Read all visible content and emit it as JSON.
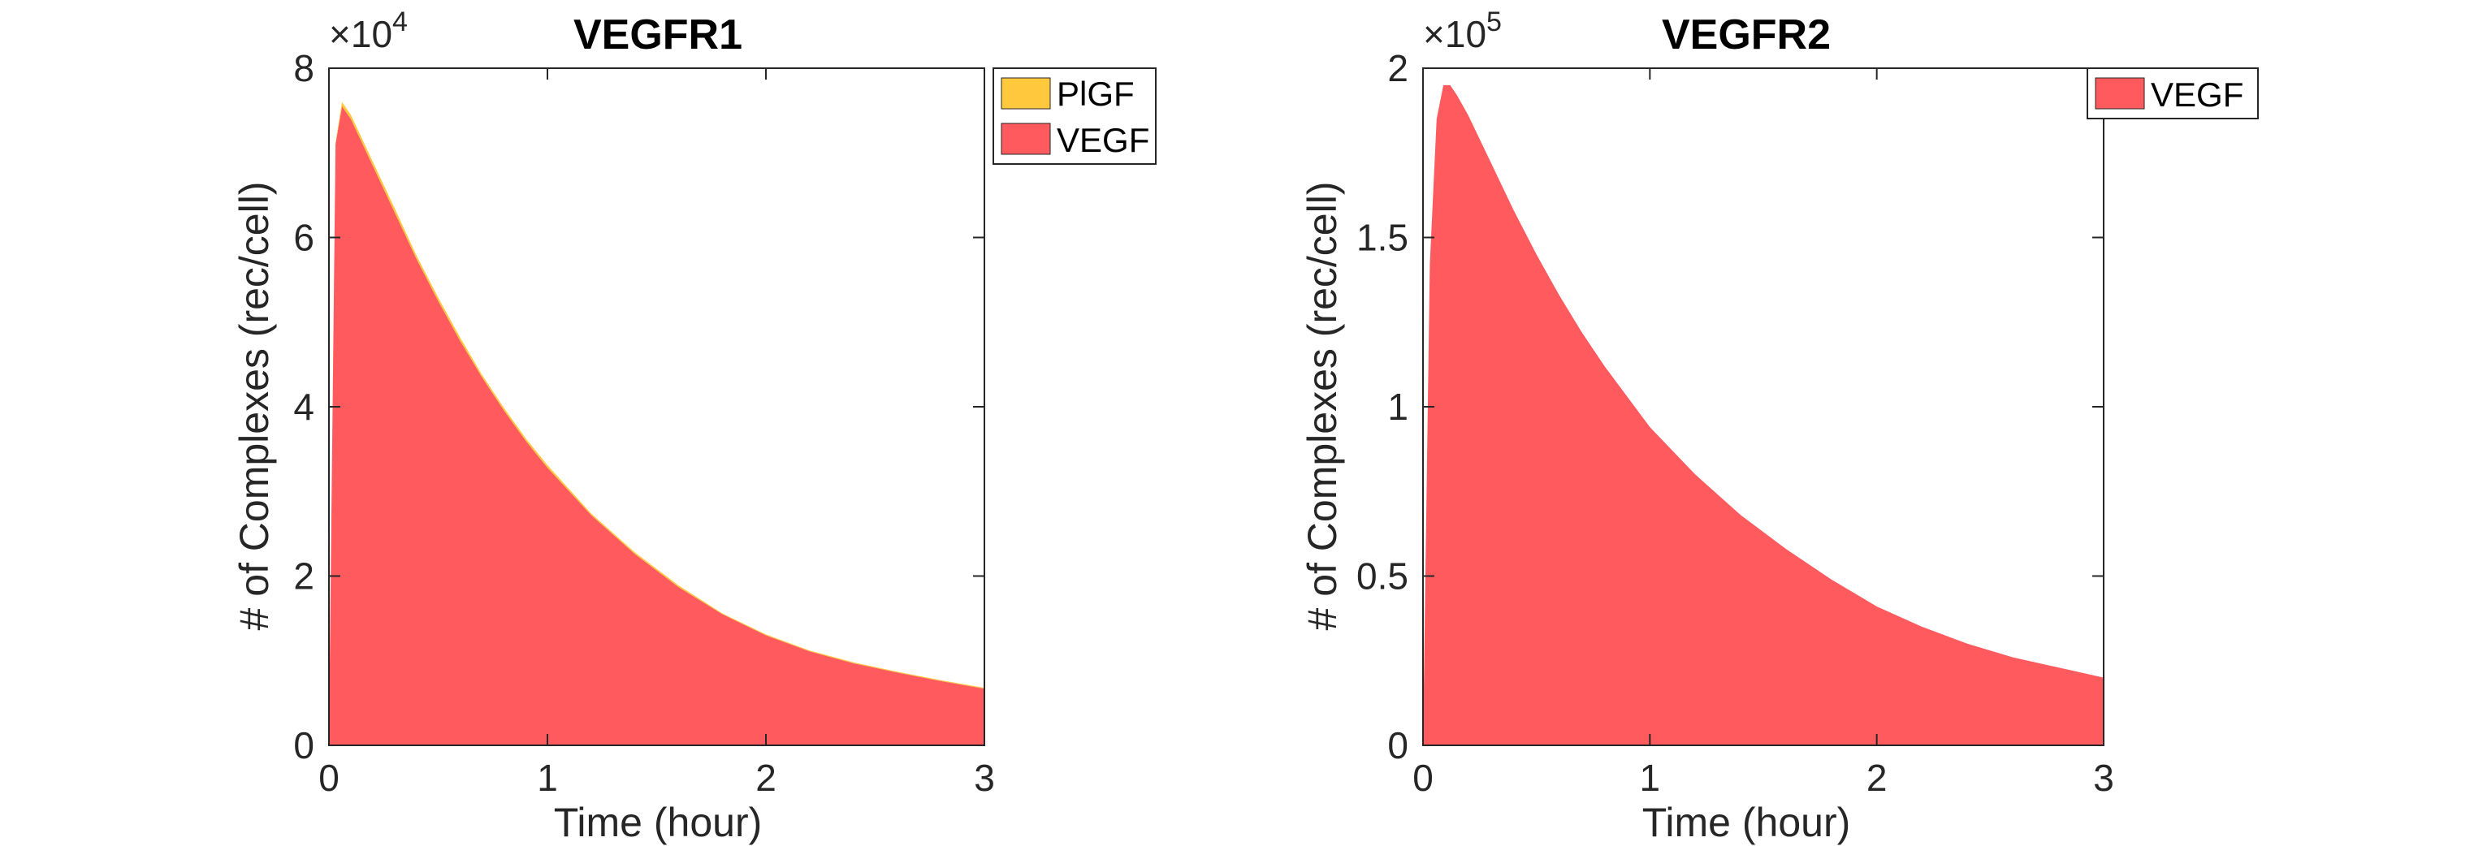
{
  "chart_data": [
    {
      "type": "area",
      "stacked": true,
      "title": "VEGFR1",
      "xlabel": "Time (hour)",
      "ylabel": "# of Complexes (rec/cell)",
      "xlim": [
        0,
        3
      ],
      "ylim": [
        0,
        8
      ],
      "xticks": [
        0,
        1,
        2,
        3
      ],
      "yticks": [
        0,
        2,
        4,
        6,
        8
      ],
      "y_exponent": "4",
      "y_multiplier_prefix": "×10",
      "legend_position": "outside-top-right",
      "legend": [
        "PlGF",
        "VEGF"
      ],
      "series": [
        {
          "name": "VEGF",
          "color": "#FF5A5E",
          "x": [
            0,
            0.03,
            0.06,
            0.1,
            0.2,
            0.3,
            0.4,
            0.5,
            0.6,
            0.7,
            0.8,
            0.9,
            1.0,
            1.2,
            1.4,
            1.6,
            1.8,
            2.0,
            2.2,
            2.4,
            2.6,
            2.8,
            3.0
          ],
          "values": [
            0.1,
            7.1,
            7.55,
            7.4,
            6.85,
            6.3,
            5.75,
            5.25,
            4.78,
            4.35,
            3.96,
            3.6,
            3.28,
            2.72,
            2.26,
            1.87,
            1.55,
            1.3,
            1.11,
            0.97,
            0.86,
            0.76,
            0.67
          ]
        },
        {
          "name": "PlGF",
          "color": "#FFC83D",
          "x": [
            0,
            0.03,
            0.06,
            0.1,
            0.2,
            0.3,
            0.4,
            0.5,
            0.6,
            0.7,
            0.8,
            0.9,
            1.0,
            1.2,
            1.4,
            1.6,
            1.8,
            2.0,
            2.2,
            2.4,
            2.6,
            2.8,
            3.0
          ],
          "values": [
            0,
            0.02,
            0.05,
            0.05,
            0.05,
            0.05,
            0.04,
            0.04,
            0.04,
            0.03,
            0.03,
            0.03,
            0.03,
            0.02,
            0.02,
            0.02,
            0.01,
            0.01,
            0.01,
            0.01,
            0.01,
            0.01,
            0.01
          ]
        }
      ]
    },
    {
      "type": "area",
      "stacked": true,
      "title": "VEGFR2",
      "xlabel": "Time (hour)",
      "ylabel": "# of Complexes (rec/cell)",
      "xlim": [
        0,
        3
      ],
      "ylim": [
        0,
        2
      ],
      "xticks": [
        0,
        1,
        2,
        3
      ],
      "yticks": [
        0,
        0.5,
        1,
        1.5,
        2
      ],
      "ytick_labels": [
        "0",
        "0.5",
        "1",
        "1.5",
        "2"
      ],
      "y_exponent": "5",
      "y_multiplier_prefix": "×10",
      "legend_position": "outside-top-right",
      "legend": [
        "VEGF"
      ],
      "series": [
        {
          "name": "VEGF",
          "color": "#FF5A5E",
          "x": [
            0,
            0.03,
            0.06,
            0.09,
            0.12,
            0.15,
            0.2,
            0.3,
            0.4,
            0.5,
            0.6,
            0.7,
            0.8,
            1.0,
            1.2,
            1.4,
            1.6,
            1.8,
            2.0,
            2.2,
            2.4,
            2.6,
            2.8,
            3.0
          ],
          "values": [
            0.0,
            1.42,
            1.85,
            1.95,
            1.95,
            1.92,
            1.86,
            1.72,
            1.58,
            1.45,
            1.33,
            1.22,
            1.12,
            0.94,
            0.8,
            0.68,
            0.58,
            0.49,
            0.41,
            0.35,
            0.3,
            0.26,
            0.23,
            0.2
          ]
        }
      ]
    }
  ]
}
